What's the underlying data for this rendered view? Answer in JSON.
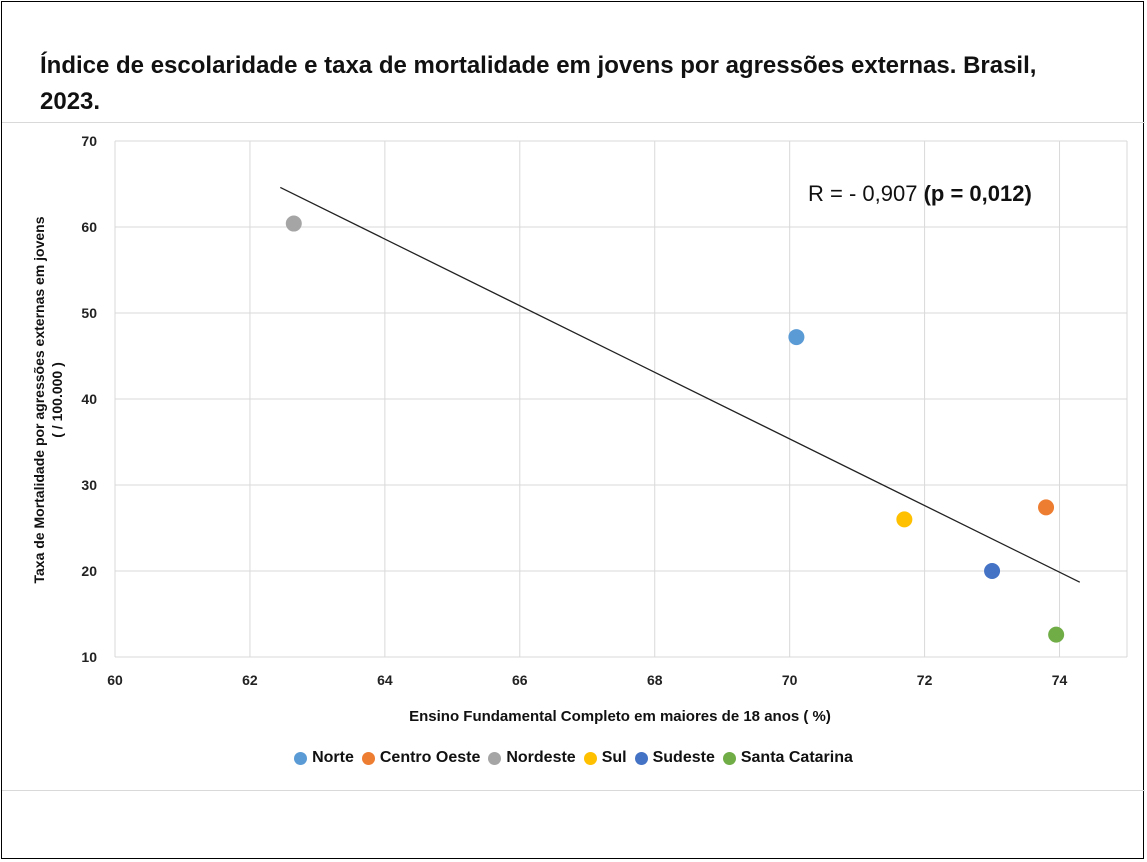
{
  "chart_data": {
    "type": "scatter",
    "title": "Índice de escolaridade e taxa de mortalidade em jovens por agressões externas. Brasil, 2023.",
    "xlabel": "Ensino Fundamental Completo em maiores de 18 anos ( %)",
    "ylabel_line1": "Taxa de Mortalidade  por  agressões externas  em jovens",
    "ylabel_line2": "( / 100.000 )",
    "xlim": [
      60,
      75
    ],
    "ylim": [
      10,
      70
    ],
    "x_ticks": [
      "60",
      "62",
      "64",
      "66",
      "68",
      "70",
      "72",
      "74"
    ],
    "y_ticks": [
      "10",
      "20",
      "30",
      "40",
      "50",
      "60",
      "70"
    ],
    "grid": true,
    "legend_position": "bottom",
    "series": [
      {
        "name": "Norte",
        "color": "#5b9bd5",
        "x": [
          70.1
        ],
        "y": [
          47.2
        ]
      },
      {
        "name": "Centro Oeste",
        "color": "#ed7d31",
        "x": [
          73.8
        ],
        "y": [
          27.4
        ]
      },
      {
        "name": "Nordeste",
        "color": "#a5a5a5",
        "x": [
          62.65
        ],
        "y": [
          60.4
        ]
      },
      {
        "name": "Sul",
        "color": "#ffc000",
        "x": [
          71.7
        ],
        "y": [
          26.0
        ]
      },
      {
        "name": "Sudeste",
        "color": "#4472c4",
        "x": [
          73.0
        ],
        "y": [
          20.0
        ]
      },
      {
        "name": "Santa Catarina",
        "color": "#70ad47",
        "x": [
          73.95
        ],
        "y": [
          12.6
        ]
      }
    ],
    "trendline": {
      "x": [
        62.45,
        74.3
      ],
      "y": [
        64.6,
        18.7
      ]
    },
    "annotation": {
      "text_normal": "R = - 0,907 ",
      "text_bold": "(p = 0,012)"
    }
  }
}
